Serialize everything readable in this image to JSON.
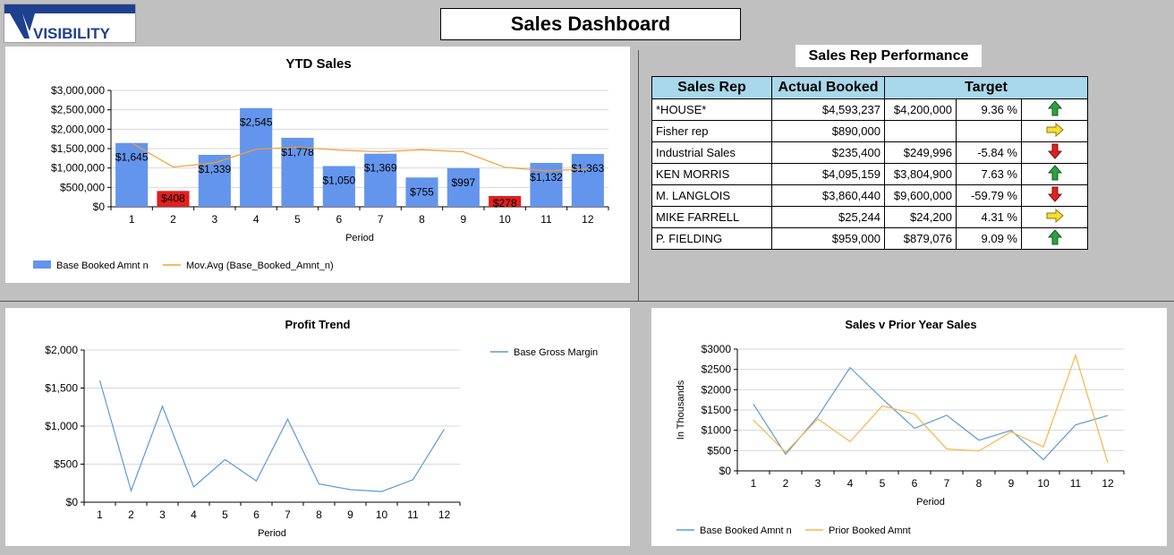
{
  "header": {
    "logo_text": "VISIBILITY",
    "title": "Sales Dashboard"
  },
  "colors": {
    "bar": "#6495ed",
    "bar_negative": "#e02020",
    "moving_avg": "#f0a030",
    "profit_line": "#5b9bd5",
    "prior_year_line": "#f5b74a",
    "table_header": "#a9d8ea"
  },
  "sales_rep": {
    "title": "Sales Rep Performance",
    "headers": [
      "Sales Rep",
      "Actual Booked",
      "Target"
    ],
    "rows": [
      {
        "rep": "*HOUSE*",
        "actual": "$4,593,237",
        "target": "$4,200,000",
        "pct": "9.36 %",
        "trend": "up-arrow-icon"
      },
      {
        "rep": "Fisher rep",
        "actual": "$890,000",
        "target": "",
        "pct": "",
        "trend": "right-arrow-icon"
      },
      {
        "rep": "Industrial Sales",
        "actual": "$235,400",
        "target": "$249,996",
        "pct": "-5.84 %",
        "trend": "down-arrow-icon"
      },
      {
        "rep": "KEN MORRIS",
        "actual": "$4,095,159",
        "target": "$3,804,900",
        "pct": "7.63 %",
        "trend": "up-arrow-icon"
      },
      {
        "rep": "M. LANGLOIS",
        "actual": "$3,860,440",
        "target": "$9,600,000",
        "pct": "-59.79 %",
        "trend": "down-arrow-icon"
      },
      {
        "rep": "MIKE FARRELL",
        "actual": "$25,244",
        "target": "$24,200",
        "pct": "4.31 %",
        "trend": "right-arrow-icon"
      },
      {
        "rep": "P. FIELDING",
        "actual": "$959,000",
        "target": "$879,076",
        "pct": "9.09 %",
        "trend": "up-arrow-icon"
      }
    ]
  },
  "chart_data": [
    {
      "id": "ytd",
      "type": "bar",
      "title": "YTD Sales",
      "xlabel": "Period",
      "ylabel": "",
      "ylim": [
        0,
        3000000
      ],
      "yticks": [
        0,
        500000,
        1000000,
        1500000,
        2000000,
        2500000,
        3000000
      ],
      "ytick_labels": [
        "$0",
        "$500,000",
        "$1,000,000",
        "$1,500,000",
        "$2,000,000",
        "$2,500,000",
        "$3,000,000"
      ],
      "categories": [
        "1",
        "2",
        "3",
        "4",
        "5",
        "6",
        "7",
        "8",
        "9",
        "10",
        "11",
        "12"
      ],
      "series": [
        {
          "name": "Base Booked Amnt n",
          "type": "bar",
          "values": [
            1645000,
            408000,
            1339000,
            2545000,
            1778000,
            1050000,
            1369000,
            755000,
            997000,
            278000,
            1132000,
            1363000
          ],
          "labels": [
            "$1,645",
            "$408",
            "$1,339",
            "$2,545",
            "$1,778",
            "$1,050",
            "$1,369",
            "$755",
            "$997",
            "$278",
            "$1,132",
            "$1,363"
          ],
          "negative_flags": [
            false,
            true,
            false,
            false,
            false,
            false,
            false,
            false,
            false,
            true,
            false,
            false
          ]
        },
        {
          "name": "Mov.Avg (Base_Booked_Amnt_n)",
          "type": "line",
          "values": [
            1645000,
            1026000,
            1131000,
            1484000,
            1534000,
            1461000,
            1418000,
            1472000,
            1418000,
            1019000,
            926000,
            973000
          ]
        }
      ],
      "legend": "bottom-left",
      "grid": true
    },
    {
      "id": "profit",
      "type": "line",
      "title": "Profit Trend",
      "xlabel": "Period",
      "ylabel": "",
      "ylim": [
        0,
        2000
      ],
      "yticks": [
        0,
        500,
        1000,
        1500,
        2000
      ],
      "ytick_labels": [
        "$0",
        "$500",
        "$1,000",
        "$1,500",
        "$2,000"
      ],
      "categories": [
        "1",
        "2",
        "3",
        "4",
        "5",
        "6",
        "7",
        "8",
        "9",
        "10",
        "11",
        "12"
      ],
      "series": [
        {
          "name": "Base Gross Margin",
          "values": [
            1600,
            150,
            1260,
            200,
            560,
            280,
            1090,
            240,
            165,
            140,
            295,
            960
          ]
        }
      ],
      "legend": "top-right",
      "grid": true
    },
    {
      "id": "pyear",
      "type": "line",
      "title": "Sales v Prior Year Sales",
      "xlabel": "Period",
      "ylabel": "In Thousands",
      "ylim": [
        0,
        3000
      ],
      "yticks": [
        0,
        500,
        1000,
        1500,
        2000,
        2500,
        3000
      ],
      "ytick_labels": [
        "$0",
        "$500",
        "$1000",
        "$1500",
        "$2000",
        "$2500",
        "$3000"
      ],
      "categories": [
        "1",
        "2",
        "3",
        "4",
        "5",
        "6",
        "7",
        "8",
        "9",
        "10",
        "11",
        "12"
      ],
      "series": [
        {
          "name": "Base Booked Amnt n",
          "values": [
            1645,
            408,
            1339,
            2545,
            1778,
            1050,
            1369,
            755,
            997,
            278,
            1132,
            1363
          ]
        },
        {
          "name": "Prior Booked Amnt",
          "values": [
            1250,
            460,
            1280,
            720,
            1600,
            1400,
            540,
            490,
            960,
            590,
            2850,
            200
          ]
        }
      ],
      "legend": "bottom",
      "grid": true
    }
  ]
}
